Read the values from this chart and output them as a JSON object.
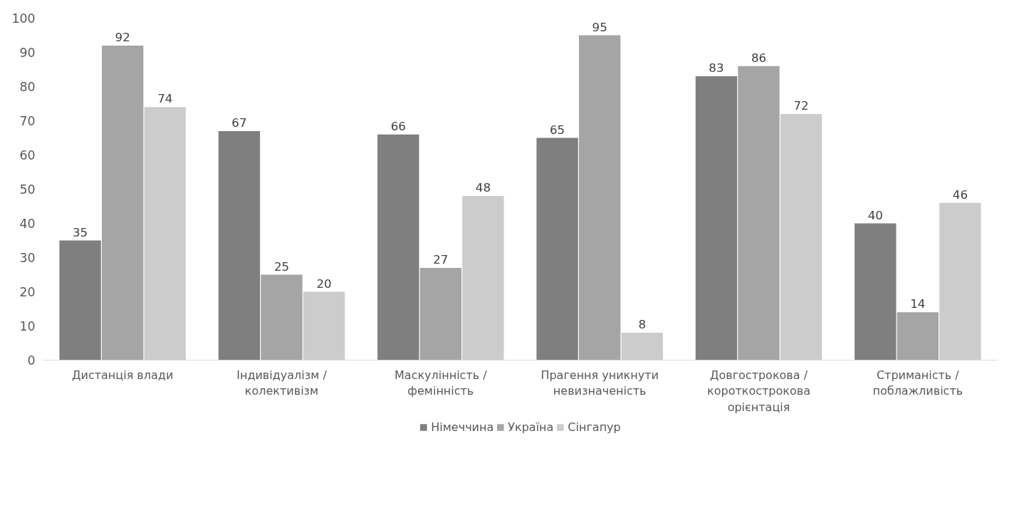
{
  "chart_data": {
    "type": "bar",
    "categories": [
      "Дистанція влади",
      "Індивідуалізм / колективізм",
      "Маскулінність / фемінність",
      "Прагення уникнути невизначеність",
      "Довгострокова / короткострокова орієнтація",
      "Стриманість / поблажливість"
    ],
    "series": [
      {
        "name": "Німеччина",
        "color": "#7f7f7f",
        "values": [
          35,
          67,
          66,
          65,
          83,
          40
        ]
      },
      {
        "name": "Україна",
        "color": "#a5a5a5",
        "values": [
          92,
          25,
          27,
          95,
          86,
          14
        ]
      },
      {
        "name": "Сінгапур",
        "color": "#cccccc",
        "values": [
          74,
          20,
          48,
          8,
          72,
          46
        ]
      }
    ],
    "ylim": [
      0,
      100
    ],
    "yticks": [
      0,
      10,
      20,
      30,
      40,
      50,
      60,
      70,
      80,
      90,
      100
    ],
    "data_labels": true,
    "legend": "bottom",
    "grid": false
  }
}
